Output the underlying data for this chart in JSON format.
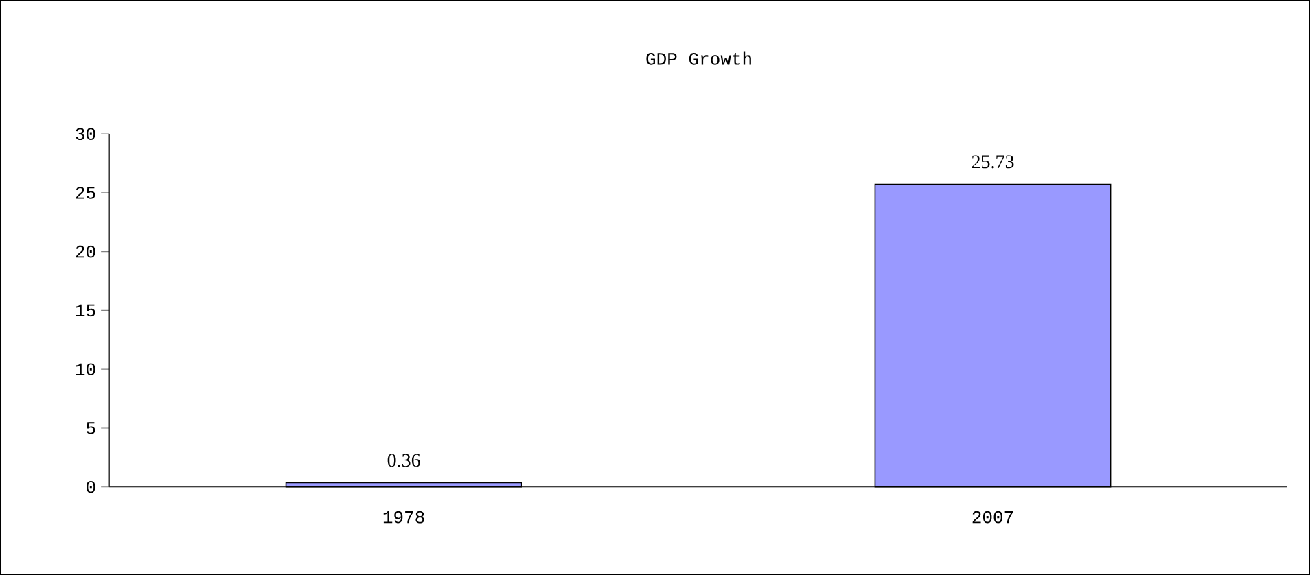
{
  "chart_data": {
    "type": "bar",
    "title": "GDP Growth",
    "categories": [
      "1978",
      "2007"
    ],
    "values": [
      0.36,
      25.73
    ],
    "color": "#9999ff",
    "ylim": [
      0,
      30
    ],
    "yticks": [
      0,
      5,
      10,
      15,
      20,
      25,
      30
    ],
    "data_labels": true
  }
}
